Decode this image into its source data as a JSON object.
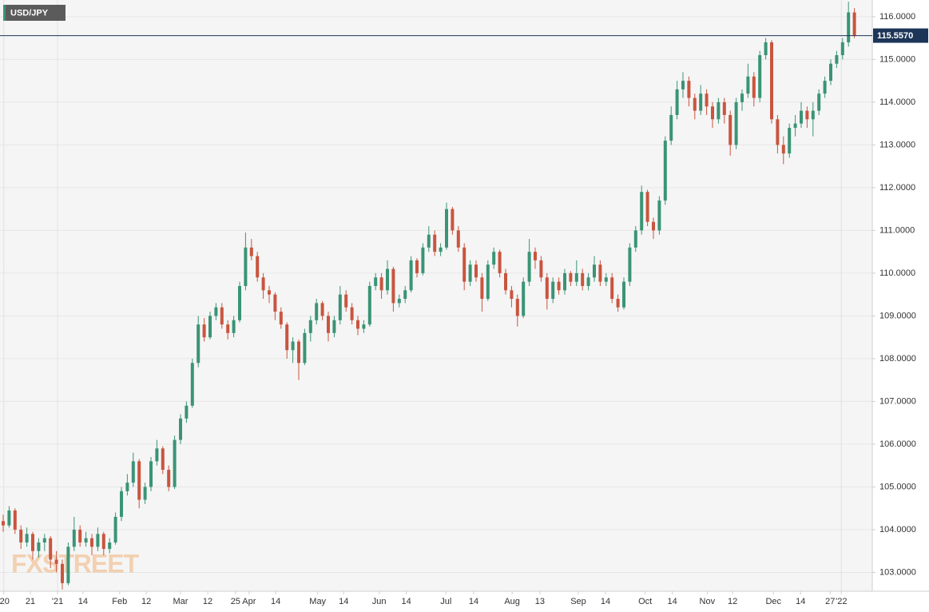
{
  "chart_data": {
    "type": "candlestick",
    "title": "USD/JPY",
    "watermark": "FXSTREET",
    "up_color": "#3a9475",
    "down_color": "#c9553f",
    "grid": true,
    "ylim": [
      102.56,
      116.39
    ],
    "yticks": [
      {
        "value": 103,
        "label": "103.0000"
      },
      {
        "value": 104,
        "label": "104.0000"
      },
      {
        "value": 105,
        "label": "105.0000"
      },
      {
        "value": 106,
        "label": "106.0000"
      },
      {
        "value": 107,
        "label": "107.0000"
      },
      {
        "value": 108,
        "label": "108.0000"
      },
      {
        "value": 109,
        "label": "109.0000"
      },
      {
        "value": 110,
        "label": "110.0000"
      },
      {
        "value": 111,
        "label": "111.0000"
      },
      {
        "value": 112,
        "label": "112.0000"
      },
      {
        "value": 113,
        "label": "113.0000"
      },
      {
        "value": 114,
        "label": "114.0000"
      },
      {
        "value": 115,
        "label": "115.0000"
      },
      {
        "value": 116,
        "label": "116.0000"
      }
    ],
    "last_price": {
      "value": 115.557,
      "label": "115.5570"
    },
    "xticks": [
      {
        "value": 0.1,
        "label": "'20"
      },
      {
        "value": 4.6,
        "label": "21"
      },
      {
        "value": 9.2,
        "label": "'21"
      },
      {
        "value": 13.5,
        "label": "14"
      },
      {
        "value": 19.7,
        "label": "Feb"
      },
      {
        "value": 24.2,
        "label": "12"
      },
      {
        "value": 30,
        "label": "Mar"
      },
      {
        "value": 34.6,
        "label": "12"
      },
      {
        "value": 39.3,
        "label": "25"
      },
      {
        "value": 41.6,
        "label": "Apr"
      },
      {
        "value": 46.1,
        "label": "14"
      },
      {
        "value": 53.2,
        "label": "May"
      },
      {
        "value": 57.6,
        "label": "14"
      },
      {
        "value": 63.6,
        "label": "Jun"
      },
      {
        "value": 68.2,
        "label": "14"
      },
      {
        "value": 74.9,
        "label": "Jul"
      },
      {
        "value": 79.6,
        "label": "14"
      },
      {
        "value": 86.1,
        "label": "Aug"
      },
      {
        "value": 90.8,
        "label": "13"
      },
      {
        "value": 97.3,
        "label": "Sep"
      },
      {
        "value": 101.9,
        "label": "14"
      },
      {
        "value": 108.6,
        "label": "Oct"
      },
      {
        "value": 113.2,
        "label": "14"
      },
      {
        "value": 119.1,
        "label": "Nov"
      },
      {
        "value": 123.4,
        "label": "12"
      },
      {
        "value": 130.3,
        "label": "Dec"
      },
      {
        "value": 134.9,
        "label": "14"
      },
      {
        "value": 139.9,
        "label": "27"
      },
      {
        "value": 141.8,
        "label": "'22"
      }
    ],
    "ohlc": [
      [
        104.2,
        104.35,
        103.95,
        104.1
      ],
      [
        104.1,
        104.55,
        104.05,
        104.45
      ],
      [
        104.45,
        104.5,
        103.9,
        104.0
      ],
      [
        104.0,
        104.1,
        103.55,
        103.7
      ],
      [
        103.7,
        104.05,
        103.6,
        103.9
      ],
      [
        103.9,
        103.95,
        103.3,
        103.5
      ],
      [
        103.5,
        103.8,
        103.35,
        103.7
      ],
      [
        103.7,
        103.9,
        103.5,
        103.8
      ],
      [
        103.8,
        103.85,
        103.1,
        103.3
      ],
      [
        103.3,
        103.5,
        103.0,
        103.2
      ],
      [
        103.2,
        103.3,
        102.6,
        102.75
      ],
      [
        102.75,
        103.7,
        102.7,
        103.6
      ],
      [
        103.6,
        104.3,
        103.5,
        104.0
      ],
      [
        104.0,
        104.1,
        103.6,
        103.7
      ],
      [
        103.7,
        103.95,
        103.6,
        103.8
      ],
      [
        103.8,
        103.9,
        103.4,
        103.6
      ],
      [
        103.6,
        104.05,
        103.5,
        103.9
      ],
      [
        103.9,
        103.95,
        103.4,
        103.55
      ],
      [
        103.55,
        103.8,
        103.45,
        103.7
      ],
      [
        103.7,
        104.4,
        103.65,
        104.3
      ],
      [
        104.3,
        105.0,
        104.2,
        104.9
      ],
      [
        104.9,
        105.3,
        104.8,
        105.1
      ],
      [
        105.1,
        105.8,
        105.0,
        105.6
      ],
      [
        105.6,
        105.65,
        104.5,
        104.7
      ],
      [
        104.7,
        105.1,
        104.6,
        105.0
      ],
      [
        105.0,
        105.7,
        104.9,
        105.6
      ],
      [
        105.6,
        106.1,
        105.5,
        105.9
      ],
      [
        105.9,
        105.95,
        105.3,
        105.4
      ],
      [
        105.4,
        105.5,
        104.9,
        105.0
      ],
      [
        105.0,
        106.2,
        104.95,
        106.1
      ],
      [
        106.1,
        106.7,
        106.0,
        106.6
      ],
      [
        106.6,
        107.0,
        106.5,
        106.9
      ],
      [
        106.9,
        108.0,
        106.85,
        107.9
      ],
      [
        107.9,
        109.0,
        107.8,
        108.8
      ],
      [
        108.8,
        108.95,
        108.4,
        108.5
      ],
      [
        108.5,
        109.1,
        108.45,
        109.0
      ],
      [
        109.0,
        109.3,
        108.9,
        109.2
      ],
      [
        109.2,
        109.3,
        108.7,
        108.8
      ],
      [
        108.8,
        108.9,
        108.45,
        108.6
      ],
      [
        108.6,
        109.0,
        108.5,
        108.9
      ],
      [
        108.9,
        109.8,
        108.85,
        109.7
      ],
      [
        109.7,
        110.95,
        109.6,
        110.6
      ],
      [
        110.6,
        110.8,
        110.3,
        110.4
      ],
      [
        110.4,
        110.5,
        109.8,
        109.9
      ],
      [
        109.9,
        110.0,
        109.4,
        109.6
      ],
      [
        109.6,
        109.7,
        109.3,
        109.5
      ],
      [
        109.5,
        109.55,
        108.9,
        109.1
      ],
      [
        109.1,
        109.2,
        108.7,
        108.8
      ],
      [
        108.8,
        108.85,
        108.0,
        108.2
      ],
      [
        108.2,
        108.5,
        107.9,
        108.4
      ],
      [
        108.4,
        108.45,
        107.5,
        107.9
      ],
      [
        107.9,
        108.7,
        107.85,
        108.6
      ],
      [
        108.6,
        109.0,
        108.4,
        108.9
      ],
      [
        108.9,
        109.4,
        108.8,
        109.3
      ],
      [
        109.3,
        109.35,
        108.9,
        109.0
      ],
      [
        109.0,
        109.1,
        108.4,
        108.6
      ],
      [
        108.6,
        109.0,
        108.5,
        108.9
      ],
      [
        108.9,
        109.7,
        108.8,
        109.5
      ],
      [
        109.5,
        109.6,
        109.1,
        109.2
      ],
      [
        109.2,
        109.3,
        108.8,
        108.9
      ],
      [
        108.9,
        109.0,
        108.55,
        108.7
      ],
      [
        108.7,
        108.9,
        108.6,
        108.8
      ],
      [
        108.8,
        109.8,
        108.75,
        109.7
      ],
      [
        109.7,
        110.0,
        109.6,
        109.9
      ],
      [
        109.9,
        110.0,
        109.4,
        109.6
      ],
      [
        109.6,
        110.3,
        109.5,
        110.1
      ],
      [
        110.1,
        110.15,
        109.1,
        109.3
      ],
      [
        109.3,
        109.5,
        109.2,
        109.4
      ],
      [
        109.4,
        109.7,
        109.3,
        109.6
      ],
      [
        109.6,
        110.4,
        109.55,
        110.3
      ],
      [
        110.3,
        110.35,
        109.9,
        110.0
      ],
      [
        110.0,
        110.7,
        109.95,
        110.6
      ],
      [
        110.6,
        111.1,
        110.5,
        110.9
      ],
      [
        110.9,
        111.0,
        110.4,
        110.5
      ],
      [
        110.5,
        110.7,
        110.4,
        110.6
      ],
      [
        110.6,
        111.65,
        110.55,
        111.5
      ],
      [
        111.5,
        111.55,
        110.9,
        111.0
      ],
      [
        111.0,
        111.1,
        110.5,
        110.6
      ],
      [
        110.6,
        110.7,
        109.6,
        109.8
      ],
      [
        109.8,
        110.3,
        109.7,
        110.2
      ],
      [
        110.2,
        110.3,
        109.8,
        109.9
      ],
      [
        109.9,
        110.0,
        109.1,
        109.4
      ],
      [
        109.4,
        110.3,
        109.35,
        110.2
      ],
      [
        110.2,
        110.6,
        110.1,
        110.5
      ],
      [
        110.5,
        110.55,
        109.9,
        110.0
      ],
      [
        110.0,
        110.1,
        109.5,
        109.6
      ],
      [
        109.6,
        109.7,
        109.2,
        109.4
      ],
      [
        109.4,
        109.5,
        108.75,
        109.0
      ],
      [
        109.0,
        109.9,
        108.95,
        109.8
      ],
      [
        109.8,
        110.8,
        109.7,
        110.5
      ],
      [
        110.5,
        110.6,
        110.1,
        110.3
      ],
      [
        110.3,
        110.4,
        109.8,
        109.9
      ],
      [
        109.9,
        110.0,
        109.15,
        109.4
      ],
      [
        109.4,
        109.9,
        109.3,
        109.8
      ],
      [
        109.8,
        109.9,
        109.5,
        109.6
      ],
      [
        109.6,
        110.1,
        109.5,
        110.0
      ],
      [
        110.0,
        110.05,
        109.7,
        109.8
      ],
      [
        109.8,
        110.3,
        109.7,
        110.0
      ],
      [
        110.0,
        110.1,
        109.6,
        109.7
      ],
      [
        109.7,
        110.0,
        109.6,
        109.9
      ],
      [
        109.9,
        110.4,
        109.8,
        110.2
      ],
      [
        110.2,
        110.3,
        109.7,
        109.8
      ],
      [
        109.8,
        110.0,
        109.7,
        109.9
      ],
      [
        109.9,
        110.0,
        109.3,
        109.4
      ],
      [
        109.4,
        109.5,
        109.1,
        109.2
      ],
      [
        109.2,
        109.9,
        109.15,
        109.8
      ],
      [
        109.8,
        110.7,
        109.7,
        110.6
      ],
      [
        110.6,
        111.1,
        110.5,
        111.0
      ],
      [
        111.0,
        112.05,
        110.9,
        111.9
      ],
      [
        111.9,
        111.95,
        111.1,
        111.2
      ],
      [
        111.2,
        111.3,
        110.8,
        111.0
      ],
      [
        111.0,
        111.8,
        110.9,
        111.7
      ],
      [
        111.7,
        113.2,
        111.6,
        113.1
      ],
      [
        113.1,
        113.9,
        113.0,
        113.7
      ],
      [
        113.7,
        114.5,
        113.6,
        114.3
      ],
      [
        114.3,
        114.7,
        114.1,
        114.5
      ],
      [
        114.5,
        114.6,
        113.9,
        114.1
      ],
      [
        114.1,
        114.2,
        113.6,
        113.8
      ],
      [
        113.8,
        114.4,
        113.7,
        114.2
      ],
      [
        114.2,
        114.3,
        113.7,
        113.9
      ],
      [
        113.9,
        114.0,
        113.4,
        113.6
      ],
      [
        113.6,
        114.1,
        113.5,
        114.0
      ],
      [
        114.0,
        114.1,
        113.5,
        113.7
      ],
      [
        113.7,
        113.8,
        112.75,
        113.0
      ],
      [
        113.0,
        114.1,
        112.9,
        114.0
      ],
      [
        114.0,
        114.3,
        113.8,
        114.2
      ],
      [
        114.2,
        114.9,
        114.1,
        114.6
      ],
      [
        114.6,
        114.7,
        113.9,
        114.1
      ],
      [
        114.1,
        115.2,
        114.0,
        115.1
      ],
      [
        115.1,
        115.5,
        115.0,
        115.4
      ],
      [
        115.4,
        115.45,
        113.5,
        113.6
      ],
      [
        113.6,
        113.7,
        112.8,
        113.0
      ],
      [
        113.0,
        113.2,
        112.55,
        112.8
      ],
      [
        112.8,
        113.5,
        112.7,
        113.4
      ],
      [
        113.4,
        113.7,
        113.2,
        113.5
      ],
      [
        113.5,
        114.0,
        113.4,
        113.8
      ],
      [
        113.8,
        113.9,
        113.4,
        113.6
      ],
      [
        113.6,
        114.0,
        113.2,
        113.8
      ],
      [
        113.8,
        114.3,
        113.7,
        114.2
      ],
      [
        114.2,
        114.6,
        114.1,
        114.5
      ],
      [
        114.5,
        115.0,
        114.4,
        114.9
      ],
      [
        114.9,
        115.2,
        114.8,
        115.1
      ],
      [
        115.1,
        115.5,
        115.0,
        115.4
      ],
      [
        115.4,
        116.35,
        115.3,
        116.1
      ],
      [
        116.1,
        116.2,
        115.5,
        115.56
      ]
    ]
  }
}
